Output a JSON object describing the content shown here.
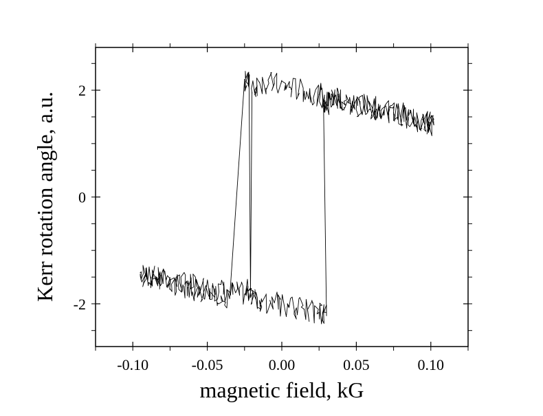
{
  "chart_data": {
    "type": "line",
    "title": "",
    "xlabel": "magnetic field, kG",
    "ylabel": "Kerr rotation angle, a.u.",
    "xlim": [
      -0.125,
      0.125
    ],
    "ylim": [
      -2.8,
      2.8
    ],
    "grid": false,
    "x_ticks": [
      -0.1,
      -0.05,
      0.0,
      0.05,
      0.1
    ],
    "x_tick_labels": [
      "-0.10",
      "-0.05",
      "0.00",
      "0.05",
      "0.10"
    ],
    "y_ticks": [
      -2,
      0,
      2
    ],
    "y_tick_labels": [
      "-2",
      "0",
      "2"
    ],
    "series": [
      {
        "color": "#000000",
        "x": [
          -0.095,
          -0.085,
          -0.075,
          -0.065,
          -0.055,
          -0.045,
          -0.035,
          -0.025,
          -0.021,
          -0.02,
          -0.015,
          -0.005,
          0.005,
          0.015,
          0.025,
          0.03,
          0.035,
          0.045,
          0.055,
          0.065,
          0.075,
          0.085,
          0.095,
          0.102,
          0.095,
          0.085,
          0.075,
          0.065,
          0.055,
          0.045,
          0.035,
          0.028,
          0.03,
          0.025,
          0.015,
          0.005,
          -0.005,
          -0.015,
          -0.021,
          -0.022,
          -0.025,
          -0.035,
          -0.045,
          -0.055,
          -0.065,
          -0.075,
          -0.085,
          -0.095
        ],
        "y": [
          -1.42,
          -1.52,
          -1.58,
          -1.63,
          -1.68,
          -1.72,
          -1.78,
          -1.82,
          -1.7,
          1.95,
          2.15,
          2.12,
          2.05,
          1.98,
          1.92,
          1.76,
          1.85,
          1.78,
          1.72,
          1.65,
          1.58,
          1.52,
          1.42,
          1.35,
          1.4,
          1.5,
          1.57,
          1.63,
          1.7,
          1.76,
          1.84,
          1.72,
          -2.22,
          -2.16,
          -2.1,
          -2.05,
          -1.98,
          -1.94,
          -1.88,
          2.22,
          2.2,
          -1.9,
          -1.82,
          -1.75,
          -1.68,
          -1.6,
          -1.52,
          -1.45
        ]
      }
    ]
  }
}
